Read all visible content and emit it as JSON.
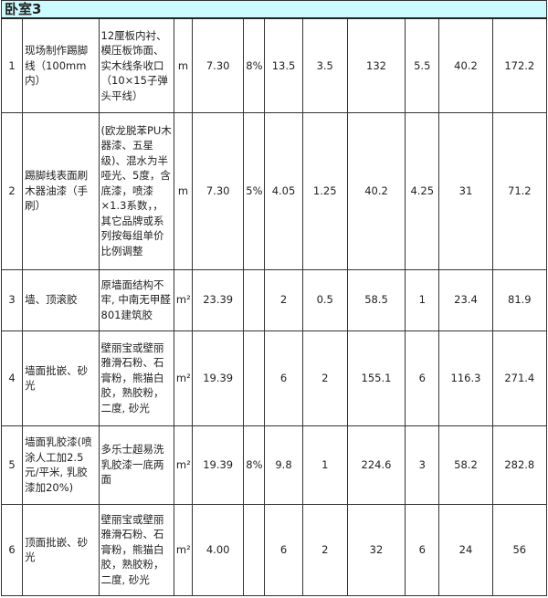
{
  "section_title": "卧室3",
  "rows": [
    {
      "no": "1",
      "name": "现场制作踢脚线（100mm内）",
      "desc": "12厘板内衬、模压板饰面、实木线条收口（10×15子弹头平线）",
      "unit": "m",
      "qty": "7.30",
      "loss": "8%",
      "c1": "13.5",
      "c2": "3.5",
      "c3": "132",
      "c4": "5.5",
      "c5": "40.2",
      "total": "172.2"
    },
    {
      "no": "2",
      "name": "踢脚线表面刷木器油漆（手刷）",
      "desc": "(欧龙脱苯PU木器漆、五星级)、混水为半哑光、5度，含底漆，喷漆×1.3系数，，其它品牌或系列按每组单价比例调整",
      "unit": "m",
      "qty": "7.30",
      "loss": "5%",
      "c1": "4.05",
      "c2": "1.25",
      "c3": "40.2",
      "c4": "4.25",
      "c5": "31",
      "total": "71.2"
    },
    {
      "no": "3",
      "name": "墙、顶滚胶",
      "desc": "原墙面结构不牢, 中南无甲醛801建筑胶",
      "unit": "m²",
      "qty": "23.39",
      "loss": "",
      "c1": "2",
      "c2": "0.5",
      "c3": "58.5",
      "c4": "1",
      "c5": "23.4",
      "total": "81.9"
    },
    {
      "no": "4",
      "name": "墙面批嵌、砂光",
      "desc": "壁丽宝或壁丽雅滑石粉、石膏粉，熊猫白胶，熟胶粉，二度, 砂光",
      "unit": "m²",
      "qty": "19.39",
      "loss": "",
      "c1": "6",
      "c2": "2",
      "c3": "155.1",
      "c4": "6",
      "c5": "116.3",
      "total": "271.4"
    },
    {
      "no": "5",
      "name": "墙面乳胶漆(喷涂人工加2.5元/平米, 乳胶漆加20%)",
      "desc": "多乐士超易洗乳胶漆一底两面",
      "unit": "m²",
      "qty": "19.39",
      "loss": "8%",
      "c1": "9.8",
      "c2": "1",
      "c3": "224.6",
      "c4": "3",
      "c5": "58.2",
      "total": "282.8"
    },
    {
      "no": "6",
      "name": "顶面批嵌、砂光",
      "desc": "壁丽宝或壁丽雅滑石粉、石膏粉，熊猫白胶，熟胶粉，二度, 砂光",
      "unit": "m²",
      "qty": "4.00",
      "loss": "",
      "c1": "6",
      "c2": "2",
      "c3": "32",
      "c4": "6",
      "c5": "24",
      "total": "56"
    }
  ]
}
